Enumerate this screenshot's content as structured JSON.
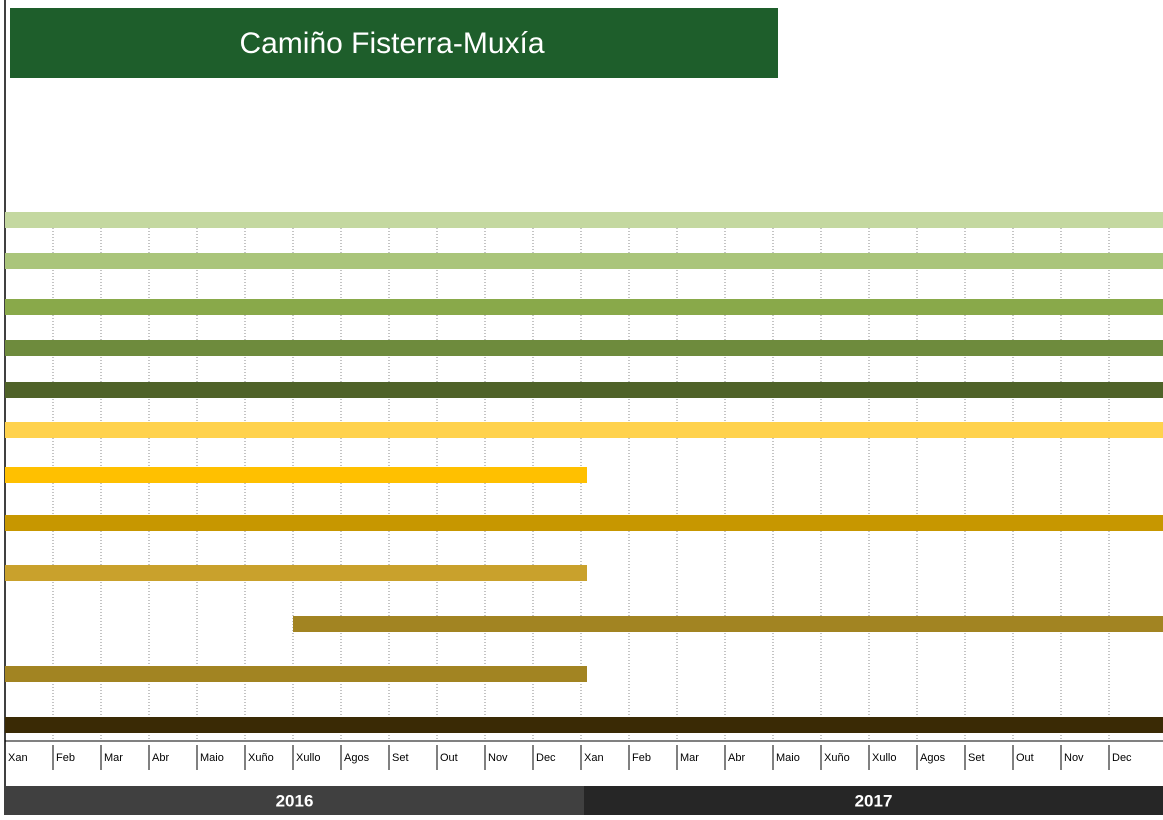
{
  "chart_data": {
    "type": "gantt",
    "title": "Camiño Fisterra-Muxía",
    "categories": [
      "Xan",
      "Feb",
      "Mar",
      "Abr",
      "Maio",
      "Xuño",
      "Xullo",
      "Agos",
      "Set",
      "Out",
      "Nov",
      "Dec",
      "Xan",
      "Feb",
      "Mar",
      "Abr",
      "Maio",
      "Xuño",
      "Xullo",
      "Agos",
      "Set",
      "Out",
      "Nov",
      "Dec"
    ],
    "years": [
      "2016",
      "2017"
    ],
    "xlim": [
      0,
      24
    ],
    "grid": true,
    "tasks": [
      {
        "start": 0,
        "end": 24,
        "color": "#c4d8a0"
      },
      {
        "start": 0,
        "end": 24,
        "color": "#aac57b"
      },
      {
        "start": 0,
        "end": 24,
        "color": "#89a94a"
      },
      {
        "start": 0,
        "end": 24,
        "color": "#6e8b3d"
      },
      {
        "start": 0,
        "end": 24,
        "color": "#4f6228"
      },
      {
        "start": 0,
        "end": 24,
        "color": "#ffd24d"
      },
      {
        "start": 0,
        "end": 12,
        "color": "#ffc000"
      },
      {
        "start": 0,
        "end": 24,
        "color": "#c79700"
      },
      {
        "start": 0,
        "end": 12,
        "color": "#c9a12c"
      },
      {
        "start": 6,
        "end": 24,
        "color": "#a28422"
      },
      {
        "start": 0,
        "end": 12,
        "color": "#a28422"
      },
      {
        "start": 0,
        "end": 24,
        "color": "#3a2a05"
      }
    ]
  }
}
